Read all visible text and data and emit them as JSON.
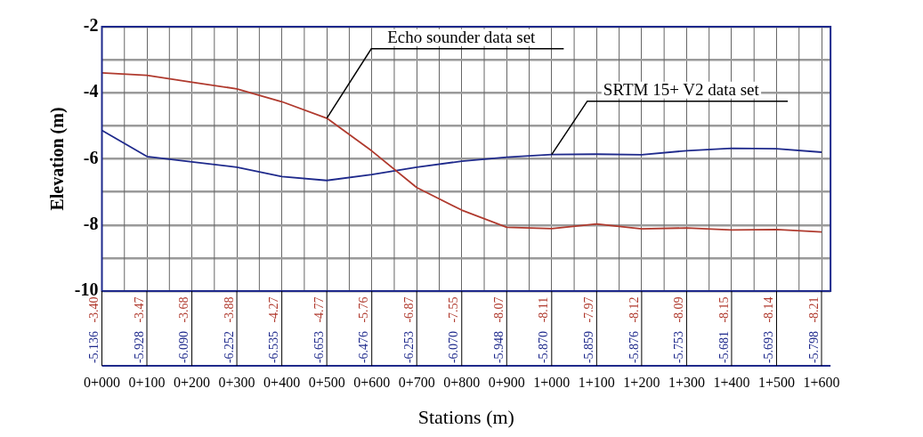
{
  "chart_data": {
    "type": "line",
    "xlabel": "Stations (m)",
    "ylabel": "Elevation (m)",
    "categories": [
      "0+000",
      "0+100",
      "0+200",
      "0+300",
      "0+400",
      "0+500",
      "0+600",
      "0+700",
      "0+800",
      "0+900",
      "1+000",
      "1+100",
      "1+200",
      "1+300",
      "1+400",
      "1+500",
      "1+600"
    ],
    "series": [
      {
        "name": "Echo sounder data set",
        "color": "#b03a2e",
        "values": [
          -3.4,
          -3.47,
          -3.68,
          -3.88,
          -4.27,
          -4.77,
          -5.76,
          -6.87,
          -7.55,
          -8.07,
          -8.11,
          -7.97,
          -8.12,
          -8.09,
          -8.15,
          -8.14,
          -8.21
        ],
        "value_labels": [
          "-3.40",
          "-3.47",
          "-3.68",
          "-3.88",
          "-4.27",
          "-4.77",
          "-5.76",
          "-6.87",
          "-7.55",
          "-8.07",
          "-8.11",
          "-7.97",
          "-8.12",
          "-8.09",
          "-8.15",
          "-8.14",
          "-8.21"
        ]
      },
      {
        "name": "SRTM 15+ V2 data set",
        "color": "#1f2a8c",
        "values": [
          -5.136,
          -5.928,
          -6.09,
          -6.252,
          -6.535,
          -6.653,
          -6.476,
          -6.253,
          -6.07,
          -5.948,
          -5.87,
          -5.859,
          -5.876,
          -5.753,
          -5.681,
          -5.693,
          -5.798
        ],
        "value_labels": [
          "-5.136",
          "-5.928",
          "-6.090",
          "-6.252",
          "-6.535",
          "-6.653",
          "-6.476",
          "-6.253",
          "-6.070",
          "-5.948",
          "-5.870",
          "-5.859",
          "-5.876",
          "-5.753",
          "-5.681",
          "-5.693",
          "-5.798"
        ]
      }
    ],
    "ylim": [
      -10,
      -2
    ],
    "yticks": [
      -10,
      {
        "value": -9,
        "label": null
      },
      -8,
      {
        "value": -7,
        "label": null
      },
      -6,
      {
        "value": -5,
        "label": null
      },
      -4,
      {
        "value": -3,
        "label": null
      },
      -2
    ],
    "grid": true,
    "legend": false,
    "marker": "none",
    "line_style": "solid"
  }
}
